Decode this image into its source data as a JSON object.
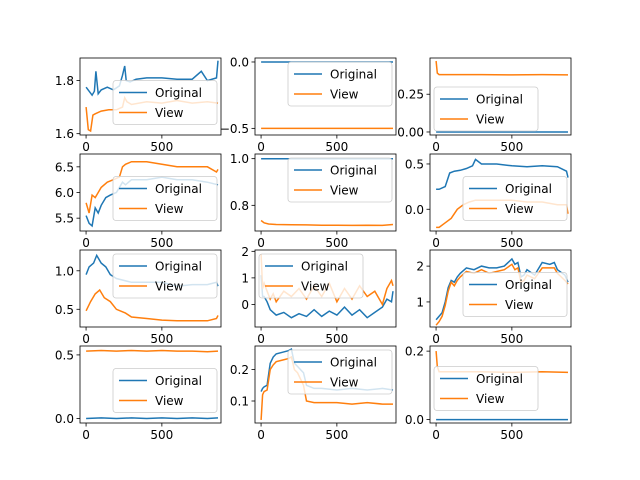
{
  "colors": {
    "original": "#1f77b4",
    "view": "#ff7f0e"
  },
  "legend_labels": [
    "Original",
    "View"
  ],
  "chart_data": [
    {
      "type": "line",
      "xlim": [
        -40,
        890
      ],
      "ylim": [
        1.595,
        1.885
      ],
      "xticks": [
        0,
        500
      ],
      "yticks": [
        1.6,
        1.8
      ],
      "ytick_labels": [
        "1.6",
        "1.8"
      ],
      "legend_position": "center-right",
      "series": [
        {
          "name": "Original",
          "x": [
            0,
            40,
            55,
            65,
            80,
            100,
            140,
            180,
            220,
            240,
            255,
            265,
            290,
            330,
            400,
            500,
            600,
            700,
            760,
            800,
            860,
            870
          ],
          "values": [
            1.775,
            1.745,
            1.76,
            1.835,
            1.75,
            1.765,
            1.775,
            1.765,
            1.78,
            1.82,
            1.855,
            1.8,
            1.795,
            1.805,
            1.81,
            1.81,
            1.805,
            1.805,
            1.835,
            1.8,
            1.81,
            1.875
          ]
        },
        {
          "name": "View",
          "x": [
            0,
            15,
            30,
            45,
            60,
            100,
            150,
            200,
            240,
            255,
            270,
            300,
            400,
            500,
            600,
            700,
            800,
            870
          ],
          "values": [
            1.7,
            1.615,
            1.61,
            1.67,
            1.675,
            1.685,
            1.69,
            1.69,
            1.7,
            1.735,
            1.72,
            1.71,
            1.72,
            1.715,
            1.725,
            1.715,
            1.72,
            1.715
          ]
        }
      ]
    },
    {
      "type": "line",
      "xlim": [
        -40,
        890
      ],
      "ylim": [
        -0.55,
        0.03
      ],
      "xticks": [
        0,
        500
      ],
      "yticks": [
        -0.5,
        0.0
      ],
      "ytick_labels": [
        "−0.5",
        "0.0"
      ],
      "legend_position": "top-right",
      "series": [
        {
          "name": "Original",
          "x": [
            0,
            870
          ],
          "values": [
            0.0,
            0.0
          ]
        },
        {
          "name": "View",
          "x": [
            0,
            870
          ],
          "values": [
            -0.5,
            -0.5
          ]
        }
      ]
    },
    {
      "type": "line",
      "xlim": [
        -40,
        890
      ],
      "ylim": [
        -0.02,
        0.49
      ],
      "xticks": [
        0,
        500
      ],
      "yticks": [
        0.0,
        0.25
      ],
      "ytick_labels": [
        "0.00",
        "0.25"
      ],
      "legend_position": "bottom-left",
      "series": [
        {
          "name": "Original",
          "x": [
            0,
            870
          ],
          "values": [
            0.0,
            0.0
          ]
        },
        {
          "name": "View",
          "x": [
            0,
            8,
            20,
            100,
            300,
            500,
            700,
            870
          ],
          "values": [
            0.47,
            0.39,
            0.38,
            0.38,
            0.38,
            0.378,
            0.38,
            0.378
          ]
        }
      ]
    },
    {
      "type": "line",
      "xlim": [
        -40,
        890
      ],
      "ylim": [
        5.25,
        6.75
      ],
      "xticks": [
        0,
        500
      ],
      "yticks": [
        5.5,
        6.0,
        6.5
      ],
      "ytick_labels": [
        "5.5",
        "6.0",
        "6.5"
      ],
      "legend_position": "center-right",
      "series": [
        {
          "name": "Original",
          "x": [
            0,
            20,
            40,
            60,
            80,
            100,
            130,
            160,
            200,
            240,
            260,
            300,
            400,
            500,
            600,
            700,
            800,
            870
          ],
          "values": [
            5.55,
            5.4,
            5.35,
            5.7,
            5.6,
            5.75,
            5.9,
            5.95,
            6.0,
            6.2,
            6.15,
            6.25,
            6.25,
            6.3,
            6.25,
            6.25,
            6.2,
            6.15
          ]
        },
        {
          "name": "View",
          "x": [
            0,
            20,
            40,
            60,
            80,
            100,
            140,
            180,
            220,
            240,
            260,
            300,
            400,
            500,
            600,
            700,
            800,
            860,
            870
          ],
          "values": [
            5.8,
            5.6,
            5.95,
            5.9,
            6.0,
            6.1,
            6.2,
            6.25,
            6.3,
            6.5,
            6.55,
            6.6,
            6.6,
            6.55,
            6.5,
            6.5,
            6.5,
            6.4,
            6.45
          ]
        }
      ]
    },
    {
      "type": "line",
      "xlim": [
        -40,
        890
      ],
      "ylim": [
        0.69,
        1.02
      ],
      "xticks": [
        0,
        500
      ],
      "yticks": [
        0.8,
        1.0
      ],
      "ytick_labels": [
        "0.8",
        "1.0"
      ],
      "legend_position": "top-right",
      "series": [
        {
          "name": "Original",
          "x": [
            0,
            870
          ],
          "values": [
            1.0,
            1.0
          ]
        },
        {
          "name": "View",
          "x": [
            0,
            20,
            50,
            100,
            200,
            300,
            400,
            500,
            600,
            700,
            800,
            870
          ],
          "values": [
            0.735,
            0.725,
            0.72,
            0.718,
            0.717,
            0.716,
            0.715,
            0.715,
            0.714,
            0.715,
            0.714,
            0.718
          ]
        }
      ]
    },
    {
      "type": "line",
      "xlim": [
        -40,
        890
      ],
      "ylim": [
        -0.24,
        0.61
      ],
      "xticks": [
        0,
        500
      ],
      "yticks": [
        0.0,
        0.5
      ],
      "ytick_labels": [
        "0.0",
        "0.5"
      ],
      "legend_position": "center-right",
      "series": [
        {
          "name": "Original",
          "x": [
            0,
            20,
            60,
            90,
            120,
            160,
            200,
            240,
            260,
            300,
            400,
            500,
            600,
            700,
            800,
            860,
            870
          ],
          "values": [
            0.22,
            0.22,
            0.25,
            0.4,
            0.42,
            0.43,
            0.45,
            0.48,
            0.55,
            0.5,
            0.5,
            0.48,
            0.47,
            0.48,
            0.47,
            0.42,
            0.35
          ]
        },
        {
          "name": "View",
          "x": [
            0,
            20,
            60,
            100,
            140,
            180,
            220,
            260,
            300,
            400,
            500,
            600,
            700,
            800,
            860,
            870
          ],
          "values": [
            -0.2,
            -0.2,
            -0.15,
            -0.1,
            0.0,
            0.05,
            0.08,
            0.1,
            0.1,
            0.1,
            0.1,
            0.08,
            0.08,
            0.05,
            0.05,
            -0.05
          ]
        }
      ]
    },
    {
      "type": "line",
      "xlim": [
        -40,
        890
      ],
      "ylim": [
        0.27,
        1.27
      ],
      "xticks": [
        0,
        500
      ],
      "yticks": [
        0.5,
        1.0
      ],
      "ytick_labels": [
        "0.5",
        "1.0"
      ],
      "legend_position": "top-right",
      "series": [
        {
          "name": "Original",
          "x": [
            0,
            20,
            50,
            70,
            100,
            130,
            160,
            200,
            300,
            400,
            500,
            600,
            700,
            800,
            860,
            870
          ],
          "values": [
            0.95,
            1.05,
            1.1,
            1.2,
            1.1,
            1.05,
            0.95,
            0.9,
            0.85,
            0.85,
            0.85,
            0.8,
            0.82,
            0.82,
            0.85,
            0.8
          ]
        },
        {
          "name": "View",
          "x": [
            0,
            30,
            60,
            90,
            120,
            160,
            200,
            260,
            300,
            400,
            500,
            600,
            700,
            800,
            860,
            870
          ],
          "values": [
            0.48,
            0.6,
            0.7,
            0.75,
            0.65,
            0.6,
            0.5,
            0.45,
            0.4,
            0.38,
            0.36,
            0.35,
            0.35,
            0.35,
            0.38,
            0.42
          ]
        }
      ]
    },
    {
      "type": "line",
      "xlim": [
        -40,
        890
      ],
      "ylim": [
        -0.85,
        2.05
      ],
      "xticks": [
        0,
        500
      ],
      "yticks": [
        0,
        1,
        2
      ],
      "ytick_labels": [
        "0",
        "1",
        "2"
      ],
      "legend_position": "top-left",
      "series": [
        {
          "name": "Original",
          "x": [
            0,
            10,
            20,
            40,
            60,
            80,
            100,
            150,
            200,
            250,
            300,
            350,
            400,
            450,
            500,
            550,
            600,
            650,
            700,
            750,
            800,
            830,
            860,
            870
          ],
          "values": [
            1.1,
            0.3,
            0.3,
            0.1,
            -0.2,
            -0.3,
            -0.4,
            -0.3,
            -0.5,
            -0.35,
            -0.45,
            -0.2,
            -0.45,
            -0.25,
            -0.4,
            -0.1,
            -0.4,
            -0.2,
            -0.5,
            -0.3,
            -0.1,
            0.2,
            0.1,
            0.5
          ]
        },
        {
          "name": "View",
          "x": [
            0,
            10,
            20,
            40,
            60,
            80,
            100,
            150,
            200,
            250,
            300,
            350,
            400,
            450,
            500,
            550,
            600,
            650,
            700,
            750,
            800,
            830,
            860,
            870
          ],
          "values": [
            1.9,
            0.6,
            0.8,
            0.5,
            0.2,
            0.4,
            0.1,
            0.5,
            0.3,
            0.6,
            0.2,
            0.7,
            0.3,
            0.8,
            0.1,
            0.6,
            0.2,
            0.7,
            0.3,
            0.5,
            0.0,
            0.6,
            0.9,
            0.7
          ]
        }
      ]
    },
    {
      "type": "line",
      "xlim": [
        -40,
        890
      ],
      "ylim": [
        0.3,
        2.45
      ],
      "xticks": [
        0,
        500
      ],
      "yticks": [
        1,
        2
      ],
      "ytick_labels": [
        "1",
        "2"
      ],
      "legend_position": "center-right",
      "series": [
        {
          "name": "Original",
          "x": [
            0,
            20,
            40,
            60,
            80,
            100,
            120,
            140,
            160,
            200,
            250,
            300,
            350,
            400,
            450,
            500,
            520,
            540,
            560,
            580,
            600,
            650,
            700,
            750,
            780,
            800,
            850,
            870
          ],
          "values": [
            0.5,
            0.6,
            0.7,
            1.0,
            1.4,
            1.6,
            1.55,
            1.7,
            1.8,
            1.95,
            1.9,
            2.0,
            1.95,
            1.95,
            2.0,
            2.2,
            2.05,
            2.1,
            1.7,
            1.75,
            1.9,
            1.75,
            2.1,
            2.05,
            2.1,
            1.9,
            1.75,
            1.55
          ]
        },
        {
          "name": "View",
          "x": [
            0,
            20,
            40,
            60,
            80,
            100,
            120,
            140,
            160,
            200,
            250,
            300,
            350,
            400,
            450,
            500,
            520,
            540,
            560,
            580,
            600,
            650,
            700,
            750,
            780,
            800,
            850,
            870
          ],
          "values": [
            0.35,
            0.45,
            0.6,
            0.9,
            1.3,
            1.55,
            1.45,
            1.6,
            1.7,
            1.85,
            1.8,
            1.9,
            1.8,
            1.85,
            1.9,
            2.05,
            1.9,
            1.95,
            1.55,
            1.6,
            1.75,
            1.65,
            1.95,
            1.95,
            1.95,
            1.8,
            1.6,
            1.5
          ]
        }
      ]
    },
    {
      "type": "line",
      "xlim": [
        -40,
        890
      ],
      "ylim": [
        -0.035,
        0.57
      ],
      "xticks": [
        0,
        500
      ],
      "yticks": [
        0.0,
        0.5
      ],
      "ytick_labels": [
        "0.0",
        "0.5"
      ],
      "legend_position": "center-right",
      "series": [
        {
          "name": "Original",
          "x": [
            0,
            100,
            200,
            300,
            400,
            500,
            600,
            700,
            800,
            870
          ],
          "values": [
            0.0,
            0.005,
            0.0,
            0.005,
            0.0,
            0.005,
            0.0,
            0.005,
            0.0,
            0.005
          ]
        },
        {
          "name": "View",
          "x": [
            0,
            100,
            200,
            300,
            400,
            500,
            600,
            700,
            800,
            870
          ],
          "values": [
            0.53,
            0.535,
            0.53,
            0.535,
            0.53,
            0.535,
            0.53,
            0.53,
            0.525,
            0.53
          ]
        }
      ]
    },
    {
      "type": "line",
      "xlim": [
        -40,
        890
      ],
      "ylim": [
        0.03,
        0.275
      ],
      "xticks": [
        0,
        500
      ],
      "yticks": [
        0.1,
        0.2
      ],
      "ytick_labels": [
        "0.1",
        "0.2"
      ],
      "legend_position": "top-right",
      "series": [
        {
          "name": "Original",
          "x": [
            0,
            10,
            20,
            40,
            60,
            80,
            100,
            140,
            180,
            200,
            220,
            240,
            260,
            280,
            300,
            350,
            400,
            500,
            600,
            700,
            800,
            870
          ],
          "values": [
            0.13,
            0.14,
            0.145,
            0.15,
            0.22,
            0.24,
            0.25,
            0.255,
            0.26,
            0.265,
            0.22,
            0.21,
            0.2,
            0.19,
            0.15,
            0.14,
            0.14,
            0.135,
            0.14,
            0.135,
            0.14,
            0.135
          ]
        },
        {
          "name": "View",
          "x": [
            0,
            10,
            20,
            40,
            60,
            80,
            100,
            140,
            180,
            200,
            220,
            240,
            260,
            280,
            300,
            350,
            400,
            500,
            600,
            700,
            800,
            870
          ],
          "values": [
            0.04,
            0.12,
            0.13,
            0.135,
            0.2,
            0.215,
            0.225,
            0.23,
            0.235,
            0.24,
            0.2,
            0.19,
            0.17,
            0.15,
            0.1,
            0.095,
            0.095,
            0.095,
            0.09,
            0.095,
            0.09,
            0.09
          ]
        }
      ]
    },
    {
      "type": "line",
      "xlim": [
        -40,
        890
      ],
      "ylim": [
        -0.01,
        0.215
      ],
      "xticks": [
        0,
        500
      ],
      "yticks": [
        0.0,
        0.2
      ],
      "ytick_labels": [
        "0.0",
        "0.2"
      ],
      "legend_position": "center-left",
      "series": [
        {
          "name": "Original",
          "x": [
            0,
            870
          ],
          "values": [
            0.0,
            0.0
          ]
        },
        {
          "name": "View",
          "x": [
            0,
            8,
            20,
            100,
            300,
            500,
            700,
            870
          ],
          "values": [
            0.2,
            0.155,
            0.14,
            0.14,
            0.14,
            0.138,
            0.14,
            0.138
          ]
        }
      ]
    }
  ]
}
